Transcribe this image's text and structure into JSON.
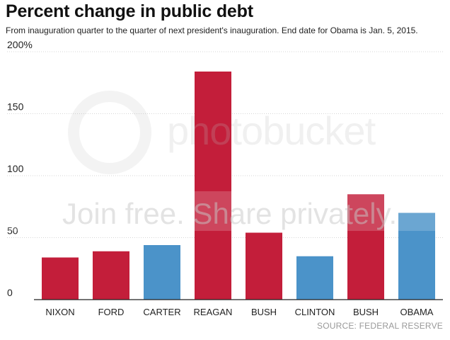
{
  "title": "Percent change in public debt",
  "subtitle": "From inauguration quarter to the quarter of next president's inauguration. End date for Obama is Jan. 5, 2015.",
  "source": "SOURCE: FEDERAL RESERVE",
  "watermark": {
    "brand": "photobucket",
    "cta": "Join free. Share privately."
  },
  "colors": {
    "republican": "#c31e3a",
    "democrat": "#4b93c9",
    "gridline": "#d6d6d6",
    "axis_text": "#222222"
  },
  "chart_data": {
    "type": "bar",
    "title": "Percent change in public debt",
    "subtitle": "From inauguration quarter to the quarter of next president's inauguration. End date for Obama is Jan. 5, 2015.",
    "xlabel": "",
    "ylabel": "",
    "categories": [
      "NIXON",
      "FORD",
      "CARTER",
      "REAGAN",
      "BUSH",
      "CLINTON",
      "BUSH",
      "OBAMA"
    ],
    "values": [
      34,
      39,
      44,
      184,
      54,
      35,
      85,
      70
    ],
    "party": [
      "republican",
      "republican",
      "democrat",
      "republican",
      "republican",
      "democrat",
      "republican",
      "democrat"
    ],
    "ylim": [
      0,
      200
    ],
    "yticks": [
      0,
      50,
      100,
      150,
      200
    ],
    "ytick_labels": [
      "0",
      "50",
      "100",
      "150",
      "200%"
    ],
    "grid": true,
    "legend": "none"
  }
}
